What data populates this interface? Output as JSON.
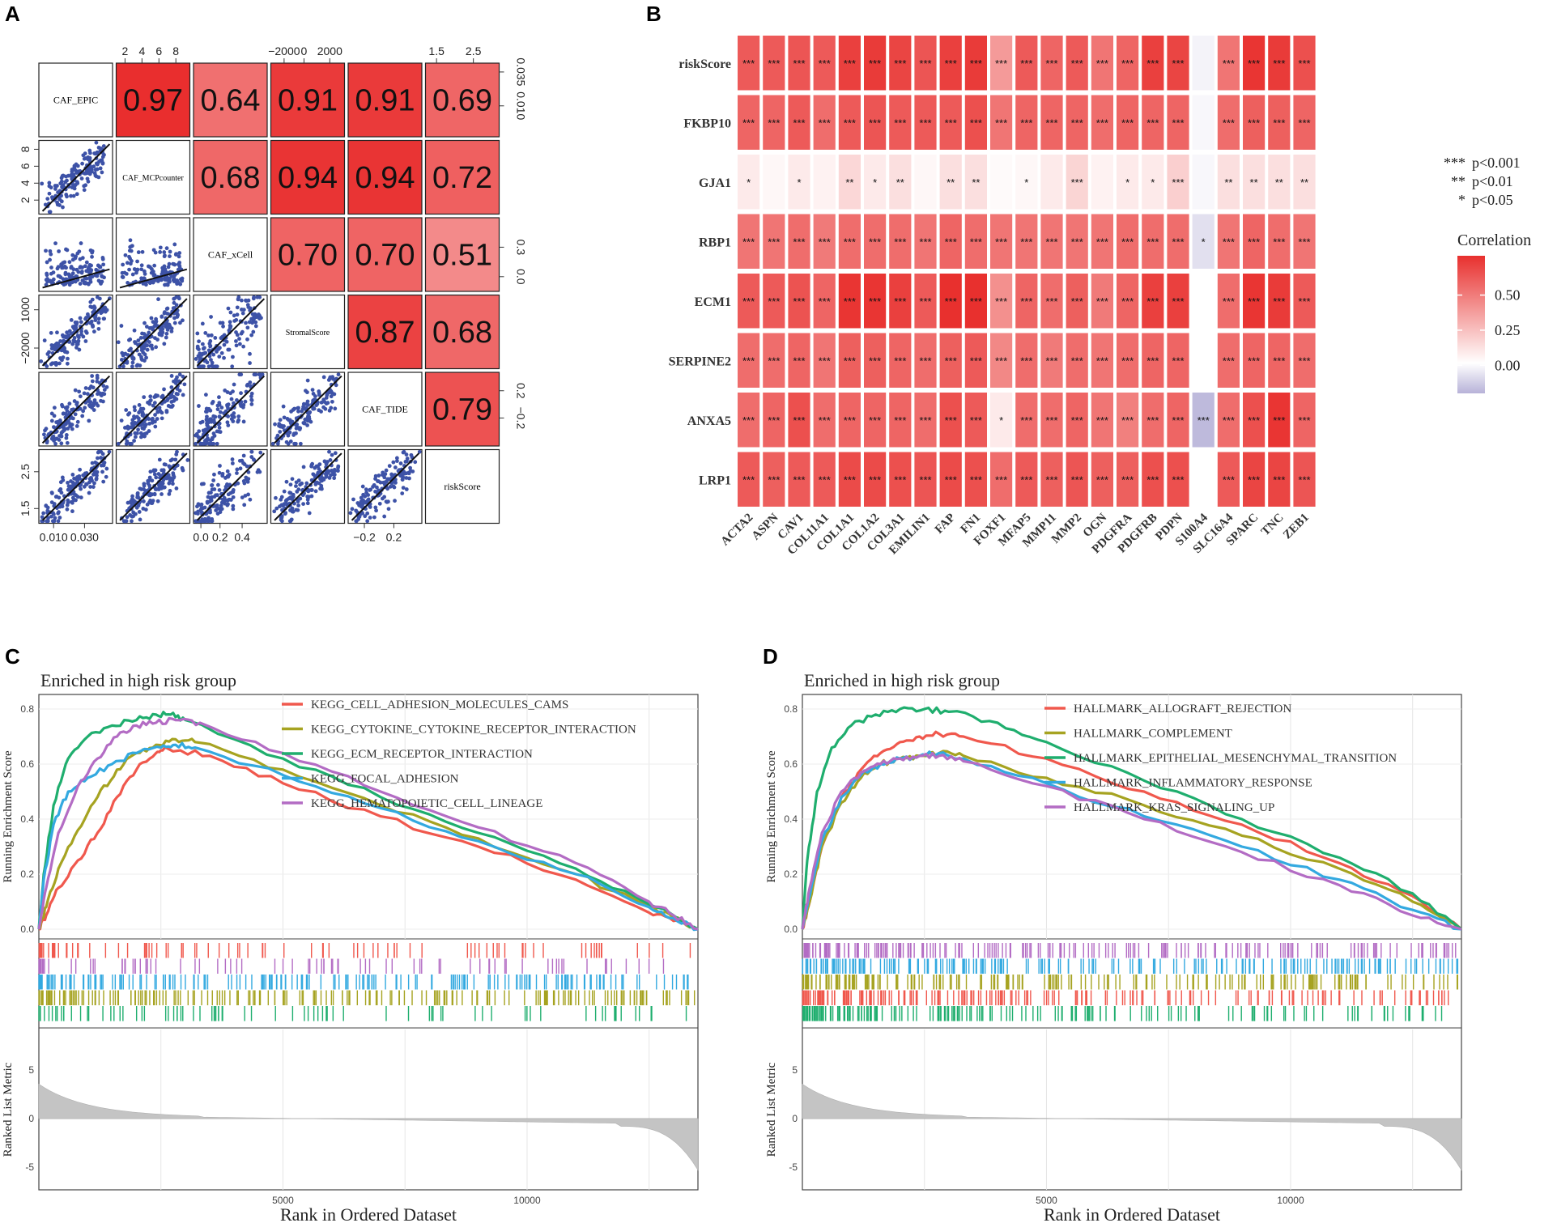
{
  "panels": [
    "A",
    "B",
    "C",
    "D"
  ],
  "chart_data": [
    {
      "panel": "A",
      "type": "scatter",
      "title": "",
      "variables": [
        "CAF_EPIC",
        "CAF_MCPcounter",
        "CAF_xCell",
        "StromalScore",
        "CAF_TIDE",
        "riskScore"
      ],
      "correlations": [
        {
          "row": "CAF_EPIC",
          "col": "CAF_MCPcounter",
          "r": "0.97"
        },
        {
          "row": "CAF_EPIC",
          "col": "CAF_xCell",
          "r": "0.64"
        },
        {
          "row": "CAF_EPIC",
          "col": "StromalScore",
          "r": "0.91"
        },
        {
          "row": "CAF_EPIC",
          "col": "CAF_TIDE",
          "r": "0.91"
        },
        {
          "row": "CAF_EPIC",
          "col": "riskScore",
          "r": "0.69"
        },
        {
          "row": "CAF_MCPcounter",
          "col": "CAF_xCell",
          "r": "0.68"
        },
        {
          "row": "CAF_MCPcounter",
          "col": "StromalScore",
          "r": "0.94"
        },
        {
          "row": "CAF_MCPcounter",
          "col": "CAF_TIDE",
          "r": "0.94"
        },
        {
          "row": "CAF_MCPcounter",
          "col": "riskScore",
          "r": "0.72"
        },
        {
          "row": "CAF_xCell",
          "col": "StromalScore",
          "r": "0.70"
        },
        {
          "row": "CAF_xCell",
          "col": "CAF_TIDE",
          "r": "0.70"
        },
        {
          "row": "CAF_xCell",
          "col": "riskScore",
          "r": "0.51"
        },
        {
          "row": "StromalScore",
          "col": "CAF_TIDE",
          "r": "0.87"
        },
        {
          "row": "StromalScore",
          "col": "riskScore",
          "r": "0.68"
        },
        {
          "row": "CAF_TIDE",
          "col": "riskScore",
          "r": "0.79"
        }
      ],
      "top_axis_ticks": {
        "col2": [
          "2",
          "4",
          "6",
          "8"
        ],
        "col4": [
          "−2000",
          "0",
          "2000"
        ],
        "col6": [
          "1.5",
          "2.5"
        ]
      },
      "right_axis_ticks": {
        "row1": [
          "0.035",
          "0.010"
        ],
        "row3": [
          "0.3",
          "0.0"
        ],
        "row5": [
          "0.2",
          "−0.2"
        ]
      },
      "left_axis_ticks": {
        "row2": [
          "8",
          "6",
          "4",
          "2"
        ],
        "row4": [
          "1000",
          "−2000"
        ],
        "row6": [
          "2.5",
          "1.5"
        ]
      },
      "bottom_axis_ticks": {
        "col1": [
          "0.010",
          "0.030"
        ],
        "col3": [
          "0.0",
          "0.2",
          "0.4"
        ],
        "col5": [
          "−0.2",
          "0.2"
        ]
      }
    },
    {
      "panel": "B",
      "type": "heatmap",
      "rows": [
        "riskScore",
        "FKBP10",
        "GJA1",
        "RBP1",
        "ECM1",
        "SERPINE2",
        "ANXA5",
        "LRP1"
      ],
      "cols": [
        "ACTA2",
        "ASPN",
        "CAV1",
        "COL11A1",
        "COL1A1",
        "COL1A2",
        "COL3A1",
        "EMILIN1",
        "FAP",
        "FN1",
        "FOXF1",
        "MFAP5",
        "MMP11",
        "MMP2",
        "OGN",
        "PDGFRA",
        "PDGFRB",
        "PDPN",
        "S100A4",
        "SLC16A4",
        "SPARC",
        "TNC",
        "ZEB1"
      ],
      "values": [
        [
          0.62,
          0.62,
          0.64,
          0.62,
          0.72,
          0.74,
          0.7,
          0.64,
          0.72,
          0.74,
          0.38,
          0.62,
          0.58,
          0.62,
          0.52,
          0.58,
          0.72,
          0.7,
          -0.03,
          0.52,
          0.76,
          0.74,
          0.66
        ],
        [
          0.58,
          0.58,
          0.62,
          0.55,
          0.62,
          0.64,
          0.62,
          0.62,
          0.62,
          0.66,
          0.52,
          0.58,
          0.58,
          0.58,
          0.55,
          0.58,
          0.58,
          0.58,
          -0.02,
          0.55,
          0.6,
          0.6,
          0.58
        ],
        [
          0.08,
          0.03,
          0.08,
          0.05,
          0.15,
          0.08,
          0.12,
          0.03,
          0.12,
          0.12,
          0.02,
          0.03,
          0.08,
          0.16,
          0.05,
          0.08,
          0.08,
          0.18,
          -0.02,
          0.12,
          0.12,
          0.12,
          0.12
        ],
        [
          0.52,
          0.52,
          0.55,
          0.5,
          0.55,
          0.55,
          0.55,
          0.52,
          0.58,
          0.55,
          0.52,
          0.52,
          0.52,
          0.52,
          0.52,
          0.55,
          0.55,
          0.55,
          -0.08,
          0.52,
          0.58,
          0.55,
          0.52
        ],
        [
          0.62,
          0.62,
          0.65,
          0.58,
          0.76,
          0.76,
          0.72,
          0.62,
          0.78,
          0.78,
          0.42,
          0.58,
          0.55,
          0.6,
          0.5,
          0.58,
          0.72,
          0.72,
          0.0,
          0.55,
          0.76,
          0.74,
          0.62
        ],
        [
          0.55,
          0.55,
          0.58,
          0.52,
          0.6,
          0.6,
          0.58,
          0.55,
          0.6,
          0.62,
          0.45,
          0.55,
          0.5,
          0.55,
          0.52,
          0.55,
          0.58,
          0.58,
          0.0,
          0.55,
          0.58,
          0.58,
          0.55
        ],
        [
          0.55,
          0.58,
          0.66,
          0.55,
          0.58,
          0.58,
          0.58,
          0.55,
          0.66,
          0.62,
          0.08,
          0.55,
          0.55,
          0.58,
          0.52,
          0.48,
          0.55,
          0.58,
          -0.18,
          0.55,
          0.66,
          0.76,
          0.58
        ],
        [
          0.62,
          0.6,
          0.62,
          0.62,
          0.68,
          0.68,
          0.66,
          0.64,
          0.68,
          0.66,
          0.55,
          0.62,
          0.6,
          0.64,
          0.6,
          0.6,
          0.66,
          0.66,
          0.0,
          0.62,
          0.7,
          0.7,
          0.64
        ]
      ],
      "stars": [
        [
          "***",
          "***",
          "***",
          "***",
          "***",
          "***",
          "***",
          "***",
          "***",
          "***",
          "***",
          "***",
          "***",
          "***",
          "***",
          "***",
          "***",
          "***",
          "",
          "***",
          "***",
          "***",
          "***"
        ],
        [
          "***",
          "***",
          "***",
          "***",
          "***",
          "***",
          "***",
          "***",
          "***",
          "***",
          "***",
          "***",
          "***",
          "***",
          "***",
          "***",
          "***",
          "***",
          "",
          "***",
          "***",
          "***",
          "***"
        ],
        [
          "*",
          "",
          "*",
          "",
          "**",
          "*",
          "**",
          "",
          "**",
          "**",
          "",
          "*",
          "",
          "***",
          "",
          "*",
          "*",
          "***",
          "",
          "**",
          "**",
          "**",
          "**"
        ],
        [
          "***",
          "***",
          "***",
          "***",
          "***",
          "***",
          "***",
          "***",
          "***",
          "***",
          "***",
          "***",
          "***",
          "***",
          "***",
          "***",
          "***",
          "***",
          "*",
          "***",
          "***",
          "***",
          "***"
        ],
        [
          "***",
          "***",
          "***",
          "***",
          "***",
          "***",
          "***",
          "***",
          "***",
          "***",
          "***",
          "***",
          "***",
          "***",
          "***",
          "***",
          "***",
          "***",
          "",
          "***",
          "***",
          "***",
          "***"
        ],
        [
          "***",
          "***",
          "***",
          "***",
          "***",
          "***",
          "***",
          "***",
          "***",
          "***",
          "***",
          "***",
          "***",
          "***",
          "***",
          "***",
          "***",
          "***",
          "",
          "***",
          "***",
          "***",
          "***"
        ],
        [
          "***",
          "***",
          "***",
          "***",
          "***",
          "***",
          "***",
          "***",
          "***",
          "***",
          "*",
          "***",
          "***",
          "***",
          "***",
          "***",
          "***",
          "***",
          "***",
          "***",
          "***",
          "***",
          "***"
        ],
        [
          "***",
          "***",
          "***",
          "***",
          "***",
          "***",
          "***",
          "***",
          "***",
          "***",
          "***",
          "***",
          "***",
          "***",
          "***",
          "***",
          "***",
          "***",
          "",
          "***",
          "***",
          "***",
          "***"
        ]
      ],
      "significance_legend": [
        {
          "mark": "***",
          "label": "p<0.001"
        },
        {
          "mark": "**",
          "label": "p<0.01"
        },
        {
          "mark": "*",
          "label": "p<0.05"
        }
      ],
      "colorbar": {
        "title": "Correlation",
        "ticks": [
          "0.50",
          "0.25",
          "0.00"
        ],
        "range": [
          -0.2,
          0.78
        ]
      },
      "colors": {
        "high": "#e8302e",
        "mid": "#ffffff",
        "low": "#b7b2d8"
      }
    },
    {
      "panel": "C",
      "type": "line",
      "title": "Enriched in high risk group",
      "ylabel": "Running Enrichment Score",
      "ylabel2": "Ranked List Metric",
      "xlabel": "Rank in Ordered Dataset",
      "xlim": [
        0,
        13500
      ],
      "ylim": [
        0,
        0.8
      ],
      "yticks": [
        "0.0",
        "0.2",
        "0.4",
        "0.6",
        "0.8"
      ],
      "metric_ticks": [
        "5",
        "0",
        "-5"
      ],
      "xticks": [
        "5000",
        "10000"
      ],
      "series": [
        {
          "name": "KEGG_CELL_ADHESION_MOLECULES_CAMS",
          "color": "#f0584d",
          "x": [
            0,
            150,
            400,
            800,
            1200,
            1600,
            2000,
            2400,
            2600,
            3500,
            5000,
            7000,
            9000,
            11000,
            12500,
            13000,
            13500
          ],
          "y": [
            0.0,
            0.05,
            0.15,
            0.25,
            0.35,
            0.48,
            0.58,
            0.64,
            0.66,
            0.63,
            0.53,
            0.41,
            0.3,
            0.18,
            0.06,
            0.03,
            0.0
          ]
        },
        {
          "name": "KEGG_CYTOKINE_CYTOKINE_RECEPTOR_INTERACTION",
          "color": "#a6a321",
          "x": [
            0,
            150,
            400,
            800,
            1200,
            1600,
            2000,
            2400,
            2800,
            3200,
            5000,
            7000,
            9000,
            11000,
            12500,
            13000,
            13500
          ],
          "y": [
            0.0,
            0.08,
            0.22,
            0.36,
            0.48,
            0.58,
            0.64,
            0.67,
            0.69,
            0.68,
            0.58,
            0.45,
            0.33,
            0.2,
            0.08,
            0.04,
            0.0
          ]
        },
        {
          "name": "KEGG_ECM_RECEPTOR_INTERACTION",
          "color": "#1fae6e",
          "x": [
            0,
            100,
            300,
            600,
            1000,
            1500,
            2000,
            2400,
            2700,
            3000,
            5000,
            7000,
            9000,
            11000,
            12500,
            13000,
            13500
          ],
          "y": [
            0.0,
            0.2,
            0.45,
            0.62,
            0.7,
            0.74,
            0.76,
            0.78,
            0.78,
            0.76,
            0.62,
            0.48,
            0.35,
            0.22,
            0.09,
            0.05,
            0.0
          ]
        },
        {
          "name": "KEGG_FOCAL_ADHESION",
          "color": "#33a9e0",
          "x": [
            0,
            100,
            300,
            600,
            1000,
            1500,
            2000,
            2500,
            2800,
            3200,
            5000,
            7000,
            9000,
            11000,
            12500,
            13000,
            13500
          ],
          "y": [
            0.0,
            0.18,
            0.38,
            0.5,
            0.55,
            0.6,
            0.64,
            0.66,
            0.67,
            0.66,
            0.56,
            0.44,
            0.32,
            0.2,
            0.08,
            0.04,
            0.0
          ]
        },
        {
          "name": "KEGG_HEMATOPOIETIC_CELL_LINEAGE",
          "color": "#b36cc4",
          "x": [
            0,
            150,
            400,
            800,
            1200,
            1600,
            2000,
            2400,
            2800,
            3300,
            5000,
            7000,
            9000,
            11000,
            12500,
            13000,
            13500
          ],
          "y": [
            0.0,
            0.15,
            0.35,
            0.52,
            0.62,
            0.7,
            0.74,
            0.75,
            0.76,
            0.75,
            0.64,
            0.5,
            0.37,
            0.24,
            0.1,
            0.05,
            0.0
          ]
        }
      ]
    },
    {
      "panel": "D",
      "type": "line",
      "title": "Enriched in high risk group",
      "ylabel": "Running Enrichment Score",
      "ylabel2": "Ranked List Metric",
      "xlabel": "Rank in Ordered Dataset",
      "xlim": [
        0,
        13500
      ],
      "ylim": [
        0,
        0.8
      ],
      "yticks": [
        "0.0",
        "0.2",
        "0.4",
        "0.6",
        "0.8"
      ],
      "metric_ticks": [
        "5",
        "0",
        "-5"
      ],
      "xticks": [
        "5000",
        "10000"
      ],
      "series": [
        {
          "name": "HALLMARK_ALLOGRAFT_REJECTION",
          "color": "#f0584d",
          "x": [
            0,
            150,
            400,
            800,
            1200,
            1600,
            2000,
            2400,
            2800,
            3300,
            5000,
            7000,
            9000,
            11000,
            12500,
            13500
          ],
          "y": [
            0.0,
            0.1,
            0.3,
            0.48,
            0.58,
            0.64,
            0.68,
            0.7,
            0.71,
            0.7,
            0.62,
            0.5,
            0.38,
            0.24,
            0.12,
            0.0
          ]
        },
        {
          "name": "HALLMARK_COMPLEMENT",
          "color": "#a6a321",
          "x": [
            0,
            150,
            400,
            800,
            1200,
            1600,
            2000,
            2400,
            2800,
            3300,
            5000,
            7000,
            9000,
            11000,
            12500,
            13500
          ],
          "y": [
            0.0,
            0.1,
            0.3,
            0.46,
            0.55,
            0.6,
            0.62,
            0.63,
            0.64,
            0.63,
            0.55,
            0.45,
            0.34,
            0.22,
            0.1,
            0.0
          ]
        },
        {
          "name": "HALLMARK_EPITHELIAL_MESENCHYMAL_TRANSITION",
          "color": "#1fae6e",
          "x": [
            0,
            100,
            300,
            600,
            1000,
            1500,
            2000,
            2500,
            3000,
            4000,
            5000,
            7000,
            9000,
            11000,
            12500,
            13500
          ],
          "y": [
            0.0,
            0.25,
            0.5,
            0.66,
            0.74,
            0.78,
            0.8,
            0.8,
            0.79,
            0.75,
            0.68,
            0.54,
            0.4,
            0.26,
            0.13,
            0.0
          ]
        },
        {
          "name": "HALLMARK_INFLAMMATORY_RESPONSE",
          "color": "#33a9e0",
          "x": [
            0,
            150,
            400,
            800,
            1200,
            1600,
            2000,
            2400,
            2800,
            3300,
            5000,
            7000,
            9000,
            11000,
            12500,
            13500
          ],
          "y": [
            0.0,
            0.12,
            0.32,
            0.48,
            0.56,
            0.6,
            0.62,
            0.63,
            0.64,
            0.62,
            0.53,
            0.41,
            0.3,
            0.18,
            0.07,
            0.0
          ]
        },
        {
          "name": "HALLMARK_KRAS_SIGNALING_UP",
          "color": "#b36cc4",
          "x": [
            0,
            150,
            400,
            800,
            1200,
            1600,
            2000,
            2400,
            2800,
            3300,
            5000,
            7000,
            9000,
            11000,
            12500,
            13500
          ],
          "y": [
            0.0,
            0.15,
            0.35,
            0.5,
            0.57,
            0.6,
            0.62,
            0.63,
            0.63,
            0.61,
            0.52,
            0.4,
            0.28,
            0.16,
            0.05,
            0.0
          ]
        }
      ]
    }
  ]
}
